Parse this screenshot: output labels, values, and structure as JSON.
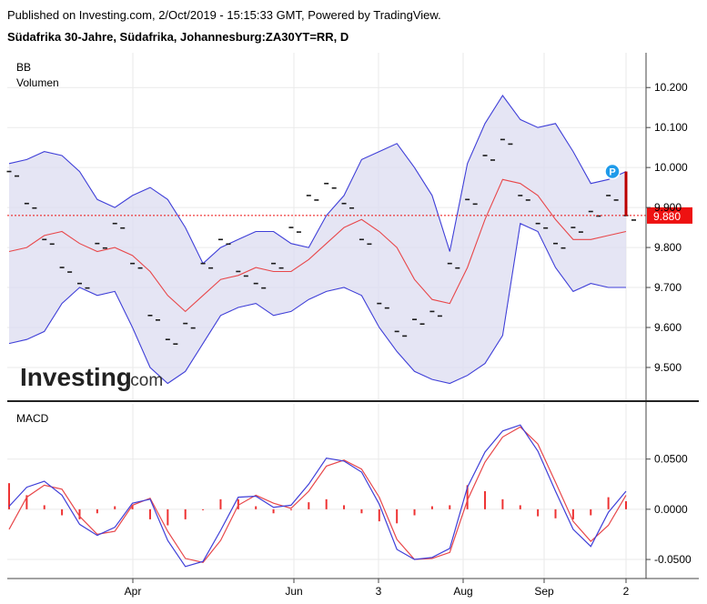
{
  "header": {
    "published": "Published on Investing.com, 2/Oct/2019 - 15:15:33 GMT, Powered by TradingView.",
    "instrument": "Südafrika 30-Jahre, Südafrika, Johannesburg:ZA30YT=RR, D"
  },
  "watermark": {
    "brand": "Investing",
    "suffix": ".com"
  },
  "colors": {
    "band_fill": "#dcdcf0",
    "band_line": "#3f3fd8",
    "basis_line": "#e8474a",
    "price_tick": "#1a1a1a",
    "last_price_bg": "#ee1111",
    "macd_line": "#3f3fd8",
    "signal_line": "#e8474a",
    "histogram": "#ee3333",
    "grid": "#eaeaea",
    "marker": "#1f9bea"
  },
  "chart_data": [
    {
      "type": "line",
      "title": "",
      "indicators": [
        "BB",
        "Volumen"
      ],
      "x_tick_labels": [
        "Apr",
        "Jun",
        "3",
        "Aug",
        "Sep",
        "2"
      ],
      "y_ticks": [
        10.2,
        10.1,
        10.0,
        9.9,
        9.8,
        9.7,
        9.6,
        9.5
      ],
      "y_tick_labels": [
        "10.200",
        "10.100",
        "10.000",
        "9.900",
        "9.800",
        "9.700",
        "9.600",
        "9.500"
      ],
      "ylim": [
        9.418,
        10.287
      ],
      "last_price": 9.88,
      "last_price_label": "9.880",
      "marker_label": "P",
      "series": [
        {
          "name": "Upper",
          "values": [
            10.01,
            10.02,
            10.04,
            10.03,
            9.99,
            9.92,
            9.9,
            9.93,
            9.95,
            9.92,
            9.85,
            9.76,
            9.8,
            9.82,
            9.84,
            9.84,
            9.81,
            9.8,
            9.88,
            9.93,
            10.02,
            10.04,
            10.06,
            10.0,
            9.93,
            9.79,
            10.01,
            10.11,
            10.18,
            10.12,
            10.1,
            10.11,
            10.04,
            9.96,
            9.97,
            9.99
          ]
        },
        {
          "name": "Basis",
          "values": [
            9.79,
            9.8,
            9.83,
            9.84,
            9.81,
            9.79,
            9.8,
            9.78,
            9.74,
            9.68,
            9.64,
            9.68,
            9.72,
            9.73,
            9.75,
            9.74,
            9.74,
            9.77,
            9.81,
            9.85,
            9.87,
            9.84,
            9.8,
            9.72,
            9.67,
            9.66,
            9.75,
            9.87,
            9.97,
            9.96,
            9.93,
            9.87,
            9.82,
            9.82,
            9.83,
            9.84
          ]
        },
        {
          "name": "Lower",
          "values": [
            9.56,
            9.57,
            9.59,
            9.66,
            9.7,
            9.68,
            9.69,
            9.6,
            9.5,
            9.46,
            9.49,
            9.56,
            9.63,
            9.65,
            9.66,
            9.63,
            9.64,
            9.67,
            9.69,
            9.7,
            9.68,
            9.6,
            9.54,
            9.49,
            9.47,
            9.46,
            9.48,
            9.51,
            9.58,
            9.86,
            9.84,
            9.75,
            9.69,
            9.71,
            9.7,
            9.7
          ]
        },
        {
          "name": "Close",
          "values": [
            9.99,
            9.91,
            9.82,
            9.75,
            9.71,
            9.81,
            9.86,
            9.76,
            9.63,
            9.57,
            9.61,
            9.76,
            9.82,
            9.74,
            9.71,
            9.76,
            9.85,
            9.93,
            9.96,
            9.91,
            9.82,
            9.66,
            9.59,
            9.62,
            9.64,
            9.76,
            9.92,
            10.03,
            10.07,
            9.93,
            9.86,
            9.81,
            9.85,
            9.89,
            9.93,
            9.88
          ]
        }
      ]
    },
    {
      "type": "line",
      "title": "MACD",
      "y_ticks": [
        0.05,
        0.0,
        -0.05
      ],
      "y_tick_labels": [
        "0.0500",
        "0.0000",
        "-0.0500"
      ],
      "ylim": [
        -0.069,
        0.105
      ],
      "series": [
        {
          "name": "MACD",
          "values": [
            0.003,
            0.022,
            0.028,
            0.014,
            -0.015,
            -0.026,
            -0.018,
            0.006,
            0.01,
            -0.031,
            -0.057,
            -0.052,
            -0.021,
            0.012,
            0.013,
            0.002,
            0.004,
            0.025,
            0.051,
            0.048,
            0.037,
            0.005,
            -0.04,
            -0.05,
            -0.048,
            -0.039,
            0.022,
            0.057,
            0.078,
            0.084,
            0.058,
            0.018,
            -0.02,
            -0.037,
            -0.003,
            0.018
          ]
        },
        {
          "name": "Signal",
          "values": [
            -0.02,
            0.012,
            0.024,
            0.02,
            -0.007,
            -0.025,
            -0.022,
            0.004,
            0.011,
            -0.022,
            -0.049,
            -0.053,
            -0.031,
            0.004,
            0.014,
            0.006,
            0.001,
            0.018,
            0.043,
            0.049,
            0.04,
            0.012,
            -0.03,
            -0.05,
            -0.049,
            -0.043,
            0.009,
            0.047,
            0.072,
            0.082,
            0.065,
            0.027,
            -0.012,
            -0.032,
            -0.016,
            0.014
          ]
        },
        {
          "name": "Histogram",
          "values": [
            0.026,
            0.014,
            0.004,
            -0.006,
            -0.01,
            -0.004,
            0.003,
            0.004,
            -0.01,
            -0.016,
            -0.01,
            0.0,
            0.01,
            0.01,
            0.003,
            -0.004,
            0.0,
            0.007,
            0.01,
            0.004,
            -0.004,
            -0.012,
            -0.014,
            -0.006,
            0.003,
            0.004,
            0.024,
            0.018,
            0.01,
            0.004,
            -0.007,
            -0.009,
            -0.01,
            -0.006,
            0.012,
            0.008
          ]
        }
      ]
    }
  ]
}
